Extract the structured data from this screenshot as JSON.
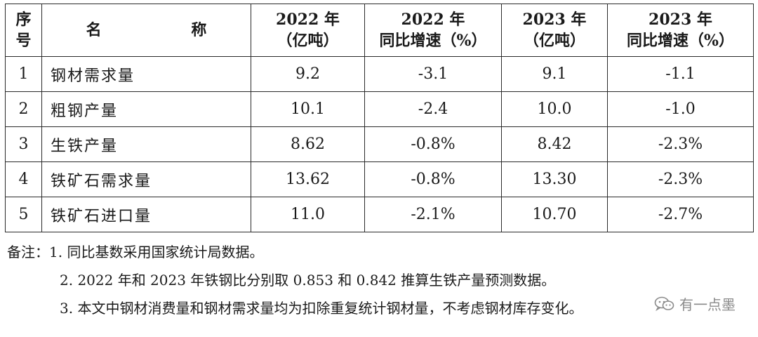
{
  "table": {
    "headers": {
      "index": [
        "序",
        "号"
      ],
      "name": "名 称",
      "c2022_amount": [
        "2022 年",
        "（亿吨）"
      ],
      "c2022_growth": [
        "2022 年",
        "同比增速（%）"
      ],
      "c2023_amount": [
        "2023 年",
        "（亿吨）"
      ],
      "c2023_growth": [
        "2023 年",
        "同比增速（%）"
      ]
    },
    "rows": [
      {
        "index": "1",
        "name": "钢材需求量",
        "v2022": "9.2",
        "g2022": "-3.1",
        "v2023": "9.1",
        "g2023": "-1.1"
      },
      {
        "index": "2",
        "name": "粗钢产量",
        "v2022": "10.1",
        "g2022": "-2.4",
        "v2023": "10.0",
        "g2023": "-1.0"
      },
      {
        "index": "3",
        "name": "生铁产量",
        "v2022": "8.62",
        "g2022": "-0.8%",
        "v2023": "8.42",
        "g2023": "-2.3%"
      },
      {
        "index": "4",
        "name": "铁矿石需求量",
        "v2022": "13.62",
        "g2022": "-0.8%",
        "v2023": "13.30",
        "g2023": "-2.3%"
      },
      {
        "index": "5",
        "name": "铁矿石进口量",
        "v2022": "11.0",
        "g2022": "-2.1%",
        "v2023": "10.70",
        "g2023": "-2.7%"
      }
    ]
  },
  "notes": {
    "line1": "备注：1. 同比基数采用国家统计局数据。",
    "line2": "2. 2022 年和 2023 年铁钢比分别取 0.853 和 0.842 推算生铁产量预测数据。",
    "line3": "3. 本文中钢材消费量和钢材需求量均为扣除重复统计钢材量，不考虑钢材库存变化。"
  },
  "watermark": {
    "icon": "wechat-icon",
    "text": "有一点墨"
  }
}
